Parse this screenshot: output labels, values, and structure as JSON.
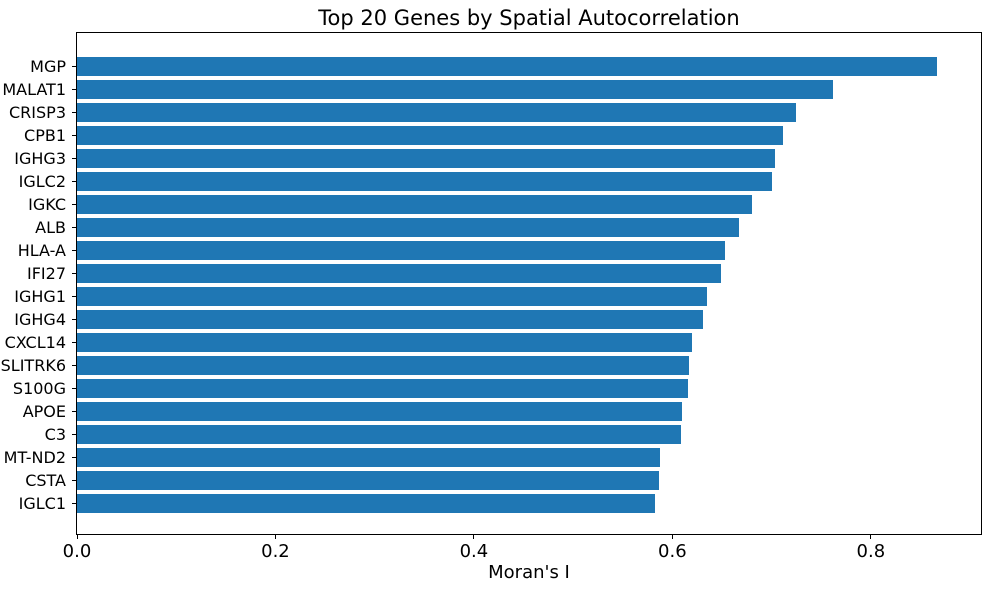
{
  "chart_data": {
    "type": "bar",
    "orientation": "horizontal",
    "title": "Top 20 Genes by Spatial Autocorrelation",
    "xlabel": "Moran's I",
    "ylabel": "",
    "categories": [
      "MGP",
      "MALAT1",
      "CRISP3",
      "CPB1",
      "IGHG3",
      "IGLC2",
      "IGKC",
      "ALB",
      "HLA-A",
      "IFI27",
      "IGHG1",
      "IGHG4",
      "CXCL14",
      "SLITRK6",
      "S100G",
      "APOE",
      "C3",
      "MT-ND2",
      "CSTA",
      "IGLC1"
    ],
    "values": [
      0.867,
      0.762,
      0.725,
      0.711,
      0.703,
      0.7,
      0.68,
      0.667,
      0.653,
      0.649,
      0.635,
      0.631,
      0.62,
      0.617,
      0.616,
      0.61,
      0.609,
      0.588,
      0.587,
      0.582
    ],
    "xlim": [
      0,
      0.911
    ],
    "xtick_labels": [
      "0.0",
      "0.2",
      "0.4",
      "0.6",
      "0.8"
    ],
    "xtick_values": [
      0.0,
      0.2,
      0.4,
      0.6,
      0.8
    ],
    "bar_color": "#1f77b4",
    "axis_color": "#000000",
    "background_color": "#ffffff",
    "grid": false,
    "legend": "none"
  }
}
